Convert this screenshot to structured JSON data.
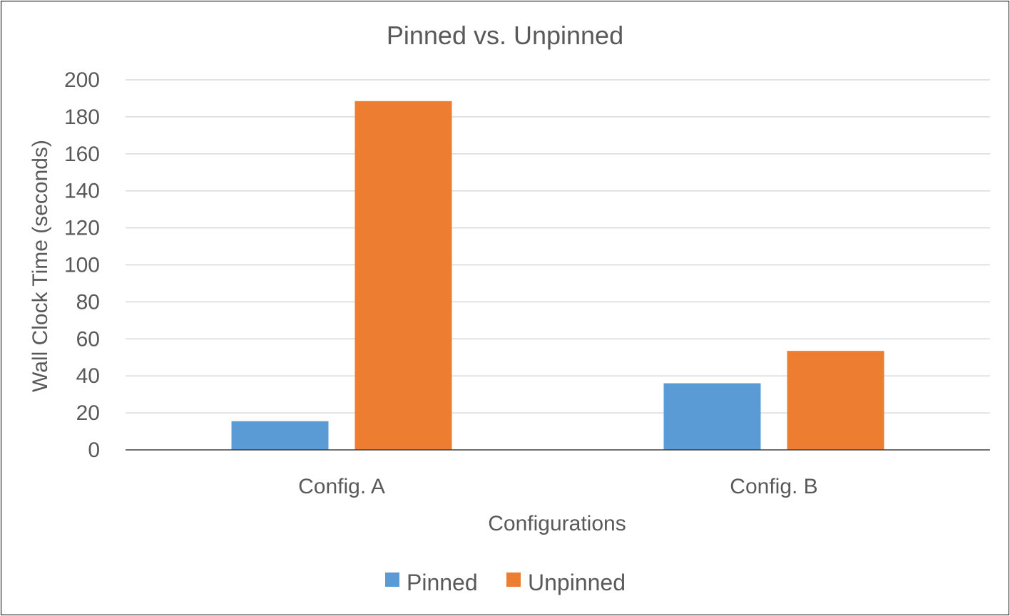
{
  "chart_data": {
    "type": "bar",
    "title": "Pinned vs. Unpinned",
    "xlabel": "Configurations",
    "ylabel": "Wall Clock Time (seconds)",
    "categories": [
      "Config. A",
      "Config. B"
    ],
    "series": [
      {
        "name": "Pinned",
        "values": [
          15.5,
          36
        ],
        "color": "#5b9bd5"
      },
      {
        "name": "Unpinned",
        "values": [
          188.5,
          53.5
        ],
        "color": "#ed7d31"
      }
    ],
    "ylim": [
      0,
      200
    ],
    "yticks": [
      0,
      20,
      40,
      60,
      80,
      100,
      120,
      140,
      160,
      180,
      200
    ],
    "grid": true,
    "legend_position": "bottom"
  }
}
